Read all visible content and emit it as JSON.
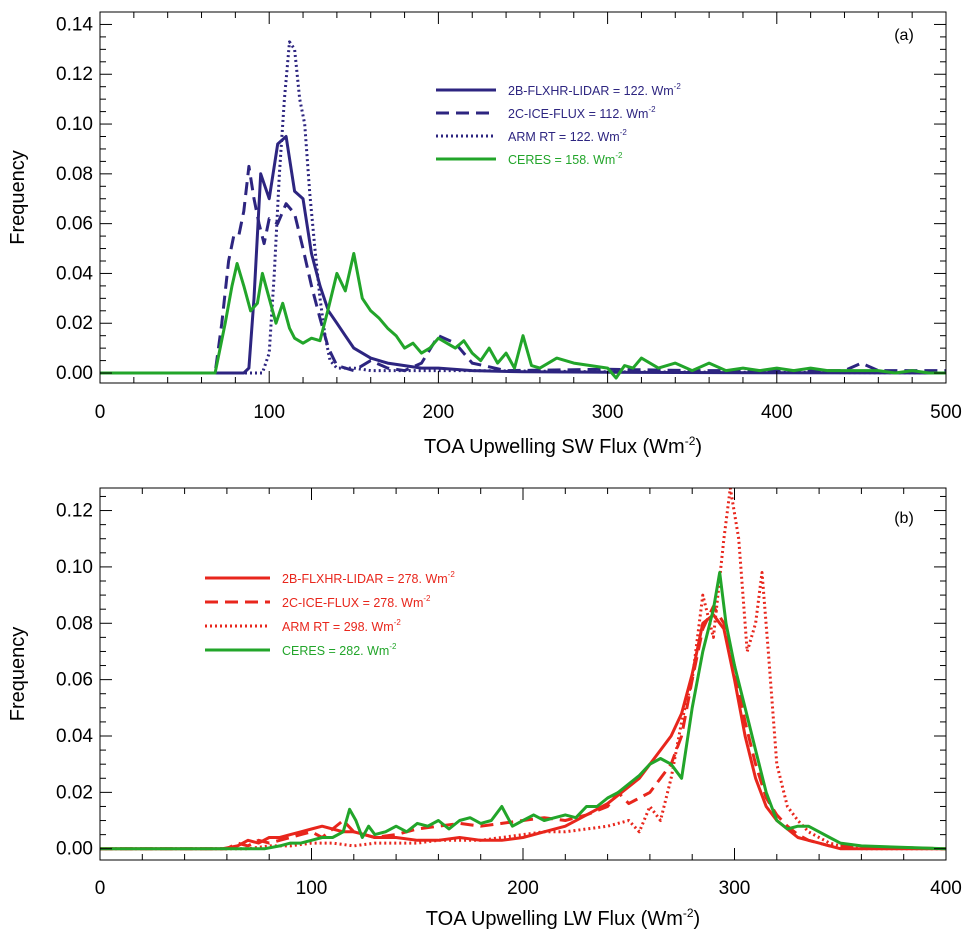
{
  "chart_data": [
    {
      "type": "line",
      "panel_label": "(a)",
      "xlabel": "TOA Upwelling SW Flux (Wm",
      "xlabel_sup": "-2",
      "xlabel_end": ")",
      "ylabel": "Frequency",
      "xlim": [
        0,
        500
      ],
      "ylim": [
        -0.004,
        0.145
      ],
      "xticks": [
        0,
        100,
        200,
        300,
        400,
        500
      ],
      "xtick_labels": [
        "0",
        "100",
        "200",
        "300",
        "400",
        "500"
      ],
      "yticks": [
        0.0,
        0.02,
        0.04,
        0.06,
        0.08,
        0.1,
        0.12,
        0.14
      ],
      "ytick_labels": [
        "0.00",
        "0.02",
        "0.04",
        "0.06",
        "0.08",
        "0.10",
        "0.12",
        "0.14"
      ],
      "legend_position": "upper-center",
      "series": [
        {
          "name": "2B-FLXHR-LIDAR",
          "legend_value": "= 122. Wm",
          "legend_sup": "-2",
          "color": "#2d2580",
          "style": "solid",
          "x": [
            0,
            85,
            88,
            91,
            95,
            100,
            105,
            110,
            115,
            120,
            125,
            130,
            135,
            140,
            145,
            150,
            160,
            170,
            180,
            190,
            200,
            220,
            250,
            300,
            400,
            500
          ],
          "y": [
            0,
            0,
            0.002,
            0.03,
            0.08,
            0.07,
            0.092,
            0.095,
            0.073,
            0.07,
            0.048,
            0.035,
            0.025,
            0.02,
            0.015,
            0.01,
            0.006,
            0.004,
            0.003,
            0.002,
            0.002,
            0.001,
            0.0005,
            0.0003,
            0.0001,
            0
          ]
        },
        {
          "name": "2C-ICE-FLUX",
          "legend_value": "= 112. Wm",
          "legend_sup": "-2",
          "color": "#2d2580",
          "style": "dashed",
          "x": [
            0,
            68,
            72,
            76,
            79,
            82,
            85,
            88,
            91,
            94,
            97,
            100,
            105,
            110,
            115,
            120,
            125,
            130,
            135,
            140,
            150,
            160,
            170,
            180,
            190,
            200,
            210,
            220,
            240,
            300,
            350,
            400,
            440,
            450,
            460,
            500
          ],
          "y": [
            0,
            0,
            0.02,
            0.045,
            0.055,
            0.055,
            0.065,
            0.083,
            0.07,
            0.06,
            0.052,
            0.062,
            0.06,
            0.068,
            0.064,
            0.05,
            0.035,
            0.022,
            0.01,
            0.003,
            0.001,
            0.005,
            0.002,
            0.001,
            0.004,
            0.015,
            0.012,
            0.004,
            0.001,
            0.0015,
            0.001,
            0.001,
            0.001,
            0.004,
            0.001,
            0.001
          ]
        },
        {
          "name": "ARM RT",
          "legend_value": "= 122. Wm",
          "legend_sup": "-2",
          "color": "#2d2580",
          "style": "dotted",
          "x": [
            0,
            96,
            100,
            103,
            106,
            109,
            112,
            115,
            118,
            121,
            124,
            127,
            130,
            133,
            136,
            140,
            150,
            160,
            180,
            200,
            220,
            300,
            400,
            500
          ],
          "y": [
            0,
            0,
            0.008,
            0.04,
            0.08,
            0.11,
            0.133,
            0.13,
            0.11,
            0.1,
            0.072,
            0.05,
            0.03,
            0.015,
            0.005,
            0.002,
            0.002,
            0.001,
            0.001,
            0.001,
            0.001,
            0.0005,
            0.0003,
            0
          ]
        },
        {
          "name": "CERES",
          "legend_value": "= 158. Wm",
          "legend_sup": "-2",
          "color": "#22a52a",
          "style": "solid",
          "x": [
            0,
            68,
            74,
            78,
            81,
            85,
            89,
            93,
            96,
            100,
            104,
            108,
            112,
            115,
            120,
            125,
            130,
            135,
            140,
            145,
            150,
            155,
            160,
            165,
            170,
            175,
            180,
            185,
            190,
            195,
            200,
            205,
            210,
            215,
            220,
            225,
            230,
            235,
            240,
            245,
            250,
            255,
            260,
            265,
            270,
            280,
            290,
            300,
            305,
            310,
            315,
            320,
            330,
            340,
            350,
            360,
            370,
            380,
            390,
            400,
            410,
            420,
            430,
            440,
            450,
            460,
            470,
            480,
            490,
            500
          ],
          "y": [
            0,
            0,
            0.02,
            0.035,
            0.044,
            0.035,
            0.025,
            0.028,
            0.04,
            0.03,
            0.02,
            0.028,
            0.018,
            0.014,
            0.012,
            0.014,
            0.013,
            0.026,
            0.04,
            0.033,
            0.048,
            0.03,
            0.025,
            0.022,
            0.018,
            0.015,
            0.01,
            0.012,
            0.008,
            0.01,
            0.014,
            0.012,
            0.01,
            0.013,
            0.008,
            0.005,
            0.01,
            0.004,
            0.008,
            0.002,
            0.015,
            0.003,
            0.002,
            0.004,
            0.006,
            0.004,
            0.003,
            0.002,
            -0.002,
            0.003,
            0.002,
            0.006,
            0.002,
            0.004,
            0.001,
            0.004,
            0.001,
            0.002,
            0.001,
            0.002,
            0.001,
            0.002,
            0.001,
            0.001,
            0.001,
            0.001,
            0,
            0.001,
            0,
            0
          ]
        }
      ]
    },
    {
      "type": "line",
      "panel_label": "(b)",
      "xlabel": "TOA Upwelling LW Flux (Wm",
      "xlabel_sup": "-2",
      "xlabel_end": ")",
      "ylabel": "Frequency",
      "xlim": [
        0,
        400
      ],
      "ylim": [
        -0.004,
        0.128
      ],
      "xticks": [
        0,
        100,
        200,
        300,
        400
      ],
      "xtick_labels": [
        "0",
        "100",
        "200",
        "300",
        "400"
      ],
      "yticks": [
        0.0,
        0.02,
        0.04,
        0.06,
        0.08,
        0.1,
        0.12
      ],
      "ytick_labels": [
        "0.00",
        "0.02",
        "0.04",
        "0.06",
        "0.08",
        "0.10",
        "0.12"
      ],
      "legend_position": "upper-left",
      "series": [
        {
          "name": "2B-FLXHR-LIDAR",
          "legend_value": "= 278. Wm",
          "legend_sup": "-2",
          "color": "#e8261c",
          "style": "solid",
          "x": [
            0,
            58,
            65,
            70,
            75,
            80,
            85,
            90,
            95,
            100,
            105,
            110,
            115,
            120,
            125,
            130,
            140,
            150,
            160,
            170,
            180,
            190,
            200,
            210,
            220,
            230,
            240,
            250,
            255,
            260,
            265,
            270,
            275,
            280,
            285,
            290,
            295,
            300,
            305,
            310,
            315,
            320,
            325,
            330,
            335,
            340,
            345,
            350,
            400
          ],
          "y": [
            0,
            0,
            0.001,
            0.003,
            0.002,
            0.004,
            0.004,
            0.005,
            0.006,
            0.007,
            0.008,
            0.007,
            0.006,
            0.006,
            0.005,
            0.004,
            0.004,
            0.003,
            0.003,
            0.004,
            0.003,
            0.003,
            0.004,
            0.006,
            0.008,
            0.012,
            0.016,
            0.022,
            0.025,
            0.03,
            0.035,
            0.04,
            0.048,
            0.062,
            0.08,
            0.083,
            0.078,
            0.06,
            0.04,
            0.025,
            0.015,
            0.01,
            0.007,
            0.004,
            0.003,
            0.002,
            0.001,
            0,
            0
          ]
        },
        {
          "name": "2C-ICE-FLUX",
          "legend_value": "= 278. Wm",
          "legend_sup": "-2",
          "color": "#e8261c",
          "style": "dashed",
          "x": [
            0,
            60,
            65,
            70,
            75,
            80,
            85,
            90,
            95,
            100,
            105,
            110,
            115,
            120,
            130,
            140,
            150,
            160,
            170,
            180,
            190,
            200,
            210,
            220,
            230,
            240,
            245,
            250,
            255,
            260,
            265,
            270,
            275,
            280,
            285,
            290,
            295,
            300,
            305,
            310,
            315,
            320,
            325,
            330,
            335,
            340,
            345,
            400
          ],
          "y": [
            0,
            0,
            0.002,
            0.001,
            0.003,
            0.002,
            0.003,
            0.004,
            0.005,
            0.006,
            0.004,
            0.007,
            0.01,
            0.006,
            0.004,
            0.005,
            0.007,
            0.008,
            0.009,
            0.008,
            0.009,
            0.01,
            0.011,
            0.01,
            0.012,
            0.015,
            0.02,
            0.016,
            0.018,
            0.02,
            0.025,
            0.03,
            0.04,
            0.06,
            0.078,
            0.086,
            0.08,
            0.065,
            0.045,
            0.03,
            0.018,
            0.012,
            0.008,
            0.005,
            0.003,
            0.002,
            0.001,
            0
          ]
        },
        {
          "name": "ARM RT",
          "legend_value": "= 298. Wm",
          "legend_sup": "-2",
          "color": "#e8261c",
          "style": "dotted",
          "x": [
            0,
            70,
            80,
            90,
            100,
            110,
            120,
            130,
            140,
            150,
            160,
            170,
            180,
            190,
            200,
            210,
            220,
            230,
            240,
            250,
            255,
            260,
            265,
            270,
            275,
            280,
            285,
            290,
            295,
            298,
            302,
            306,
            310,
            313,
            316,
            320,
            325,
            330,
            335,
            340,
            345,
            350,
            360,
            400
          ],
          "y": [
            0,
            0,
            0.001,
            0.001,
            0.002,
            0.002,
            0.001,
            0.002,
            0.002,
            0.002,
            0.003,
            0.003,
            0.003,
            0.004,
            0.005,
            0.006,
            0.006,
            0.007,
            0.008,
            0.01,
            0.006,
            0.015,
            0.01,
            0.025,
            0.045,
            0.06,
            0.09,
            0.075,
            0.11,
            0.128,
            0.11,
            0.07,
            0.08,
            0.098,
            0.07,
            0.03,
            0.015,
            0.01,
            0.006,
            0.004,
            0.002,
            0.001,
            0,
            0
          ]
        },
        {
          "name": "CERES",
          "legend_value": "= 282. Wm",
          "legend_sup": "-2",
          "color": "#22a52a",
          "style": "solid",
          "x": [
            0,
            78,
            85,
            90,
            95,
            100,
            105,
            110,
            115,
            118,
            121,
            124,
            127,
            130,
            135,
            140,
            145,
            150,
            155,
            160,
            165,
            170,
            175,
            180,
            185,
            190,
            195,
            200,
            205,
            210,
            215,
            220,
            225,
            230,
            235,
            240,
            245,
            250,
            255,
            260,
            265,
            270,
            275,
            280,
            285,
            290,
            293,
            296,
            300,
            305,
            310,
            315,
            320,
            325,
            330,
            335,
            340,
            345,
            350,
            360,
            400
          ],
          "y": [
            0,
            0,
            0.001,
            0.002,
            0.002,
            0.003,
            0.004,
            0.004,
            0.006,
            0.014,
            0.01,
            0.004,
            0.008,
            0.005,
            0.006,
            0.008,
            0.006,
            0.009,
            0.008,
            0.01,
            0.007,
            0.01,
            0.011,
            0.009,
            0.01,
            0.015,
            0.008,
            0.01,
            0.012,
            0.01,
            0.011,
            0.012,
            0.011,
            0.015,
            0.015,
            0.018,
            0.02,
            0.023,
            0.026,
            0.03,
            0.032,
            0.03,
            0.025,
            0.05,
            0.07,
            0.085,
            0.098,
            0.08,
            0.065,
            0.05,
            0.035,
            0.02,
            0.01,
            0.007,
            0.008,
            0.008,
            0.006,
            0.004,
            0.002,
            0.001,
            0
          ]
        }
      ]
    }
  ]
}
